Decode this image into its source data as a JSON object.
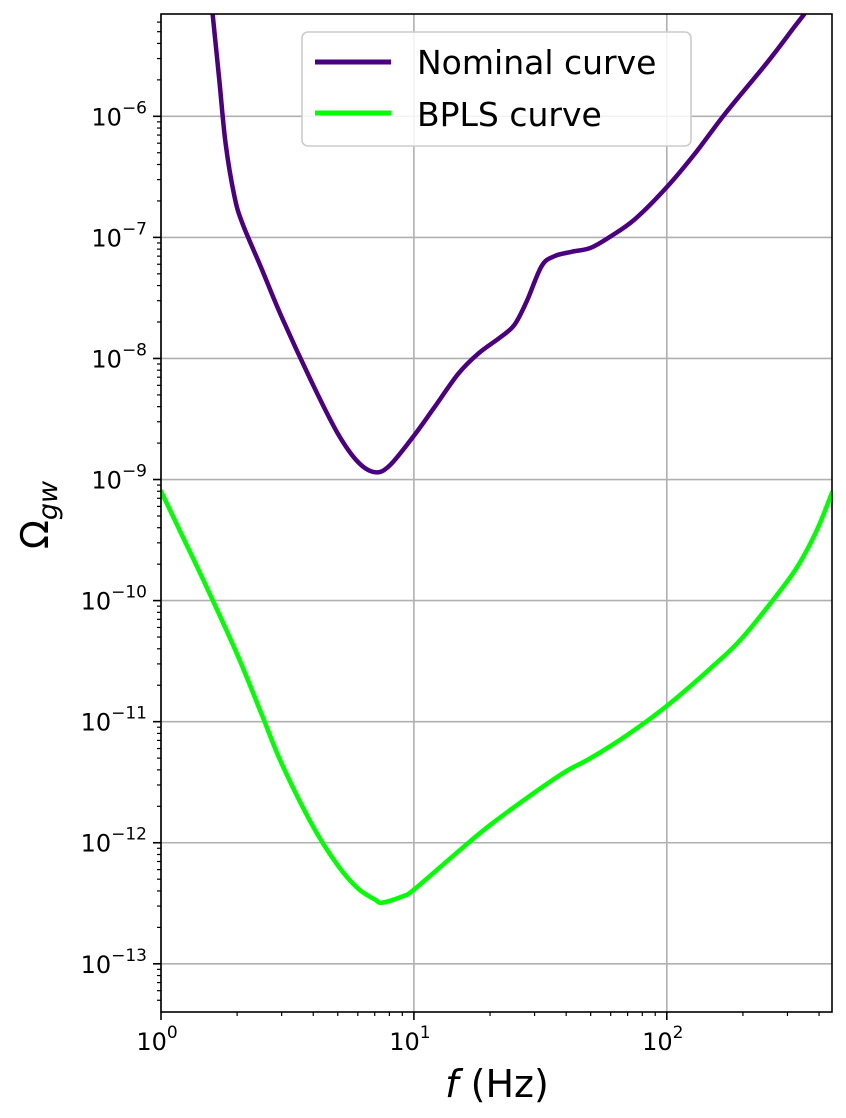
{
  "chart_data": {
    "type": "line",
    "xscale": "log",
    "yscale": "log",
    "xlabel": "f (Hz)",
    "ylabel": "Ω_gw",
    "xlim": [
      1,
      450
    ],
    "ylim": [
      4e-14,
      7e-06
    ],
    "grid": true,
    "legend": "upper-center",
    "x_ticks": [
      {
        "base": "10",
        "exp": "0",
        "value": 1
      },
      {
        "base": "10",
        "exp": "1",
        "value": 10
      },
      {
        "base": "10",
        "exp": "2",
        "value": 100
      }
    ],
    "y_ticks": [
      {
        "base": "10",
        "exp": "−13",
        "value": 1e-13
      },
      {
        "base": "10",
        "exp": "−12",
        "value": 1e-12
      },
      {
        "base": "10",
        "exp": "−11",
        "value": 1e-11
      },
      {
        "base": "10",
        "exp": "−10",
        "value": 1e-10
      },
      {
        "base": "10",
        "exp": "−9",
        "value": 1e-09
      },
      {
        "base": "10",
        "exp": "−8",
        "value": 1e-08
      },
      {
        "base": "10",
        "exp": "−7",
        "value": 1e-07
      },
      {
        "base": "10",
        "exp": "−6",
        "value": 1e-06
      }
    ],
    "series": [
      {
        "name": "Nominal curve",
        "color": "#4b0082",
        "points": [
          [
            1.6,
            7e-06
          ],
          [
            1.7,
            2e-06
          ],
          [
            1.8,
            6e-07
          ],
          [
            1.95,
            2.2e-07
          ],
          [
            2.1,
            1.3e-07
          ],
          [
            2.5,
            5.5e-08
          ],
          [
            3.0,
            2.2e-08
          ],
          [
            4.0,
            6e-09
          ],
          [
            5.0,
            2.4e-09
          ],
          [
            6.0,
            1.4e-09
          ],
          [
            7.0,
            1.15e-09
          ],
          [
            8.0,
            1.3e-09
          ],
          [
            10.0,
            2.3e-09
          ],
          [
            12.0,
            3.9e-09
          ],
          [
            15.0,
            7.5e-09
          ],
          [
            18.0,
            1.1e-08
          ],
          [
            22.0,
            1.5e-08
          ],
          [
            25.0,
            1.9e-08
          ],
          [
            28.0,
            3e-08
          ],
          [
            32.0,
            5.8e-08
          ],
          [
            36.0,
            7e-08
          ],
          [
            42.0,
            7.6e-08
          ],
          [
            50.0,
            8.2e-08
          ],
          [
            60.0,
            1.02e-07
          ],
          [
            75.0,
            1.42e-07
          ],
          [
            100.0,
            2.6e-07
          ],
          [
            130.0,
            5e-07
          ],
          [
            170.0,
            1.05e-06
          ],
          [
            250.0,
            2.8e-06
          ],
          [
            320.0,
            5.5e-06
          ],
          [
            350.0,
            7e-06
          ]
        ]
      },
      {
        "name": "BPLS curve",
        "color": "#00ff00",
        "points": [
          [
            1.0,
            8e-10
          ],
          [
            1.2,
            3.6e-10
          ],
          [
            1.5,
            1.35e-10
          ],
          [
            2.0,
            3.6e-11
          ],
          [
            2.5,
            1.15e-11
          ],
          [
            3.0,
            4.5e-12
          ],
          [
            4.0,
            1.35e-12
          ],
          [
            5.0,
            6.5e-13
          ],
          [
            6.0,
            4.2e-13
          ],
          [
            7.0,
            3.4e-13
          ],
          [
            7.5,
            3.2e-13
          ],
          [
            9.0,
            3.6e-13
          ],
          [
            10.0,
            4.1e-13
          ],
          [
            15.0,
            8.5e-13
          ],
          [
            20.0,
            1.4e-12
          ],
          [
            30.0,
            2.6e-12
          ],
          [
            40.0,
            3.9e-12
          ],
          [
            50.0,
            5e-12
          ],
          [
            70.0,
            7.8e-12
          ],
          [
            100.0,
            1.35e-11
          ],
          [
            150.0,
            2.8e-11
          ],
          [
            200.0,
            5e-11
          ],
          [
            300.0,
            1.45e-10
          ],
          [
            350.0,
            2.4e-10
          ],
          [
            400.0,
            4.2e-10
          ],
          [
            450.0,
            7.8e-10
          ]
        ]
      }
    ]
  }
}
